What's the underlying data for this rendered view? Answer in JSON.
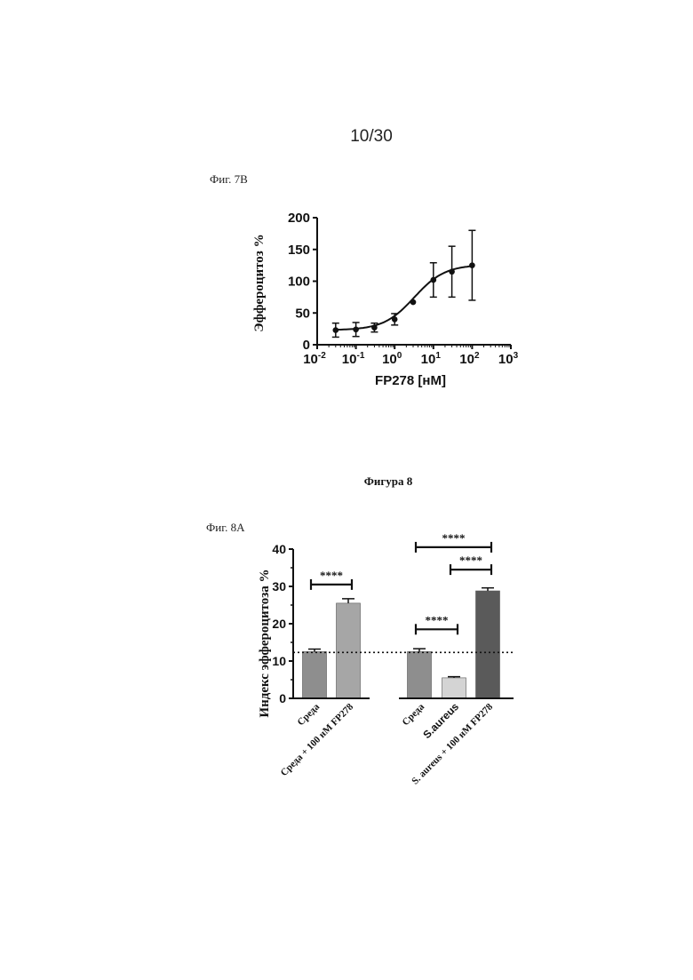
{
  "page": {
    "number": "10/30"
  },
  "fig7b": {
    "label": "Фиг. 7В"
  },
  "figure8": {
    "title": "Фигура 8"
  },
  "fig8a": {
    "label": "Фиг. 8А"
  },
  "colors": {
    "ink": "#111111",
    "bar_medium": "#8e8e8e",
    "bar_fp278": "#a6a6a6",
    "bar_saureus": "#d4d4d4",
    "bar_saureus_fp278": "#5a5a5a"
  },
  "chart_data": [
    {
      "type": "scatter",
      "title": "",
      "xlabel": "FP278 [нМ]",
      "ylabel": "Эффероцитоз %",
      "xscale": "log",
      "xlim": [
        0.01,
        1000
      ],
      "ylim": [
        0,
        200
      ],
      "xticks": [
        {
          "value": 0.01,
          "base": "10",
          "exp": "-2"
        },
        {
          "value": 0.1,
          "base": "10",
          "exp": "-1"
        },
        {
          "value": 1,
          "base": "10",
          "exp": "0"
        },
        {
          "value": 10,
          "base": "10",
          "exp": "1"
        },
        {
          "value": 100,
          "base": "10",
          "exp": "2"
        },
        {
          "value": 1000,
          "base": "10",
          "exp": "3"
        }
      ],
      "yticks": [
        0,
        50,
        100,
        150,
        200
      ],
      "grid": false,
      "points": [
        {
          "x": 0.03,
          "y": 23,
          "err": 11
        },
        {
          "x": 0.1,
          "y": 24,
          "err": 11
        },
        {
          "x": 0.3,
          "y": 27,
          "err": 7
        },
        {
          "x": 1,
          "y": 40,
          "err": 9
        },
        {
          "x": 3,
          "y": 67,
          "err": 0
        },
        {
          "x": 10,
          "y": 102,
          "err": 27
        },
        {
          "x": 30,
          "y": 115,
          "err": 40
        },
        {
          "x": 100,
          "y": 125,
          "err": 55
        }
      ],
      "fit": {
        "bottom": 23,
        "top": 126,
        "ec50": 3.2,
        "hill": 1.1
      }
    },
    {
      "type": "bar",
      "title": "",
      "xlabel": "",
      "ylabel": "Индекс эффероцитоза %",
      "ylim": [
        0,
        40
      ],
      "yticks": [
        0,
        10,
        20,
        30,
        40
      ],
      "grid": false,
      "reference_line": 12.3,
      "categories": [
        "Среда",
        "Среда + 100 нМ FP278",
        "Среда",
        "S.aureus",
        "S. aureus + 100 нМ FP278"
      ],
      "category_fonts": [
        "serif",
        "serif",
        "serif",
        "sans",
        "serif"
      ],
      "values": [
        12.5,
        25.5,
        12.5,
        5.5,
        28.8
      ],
      "errors": [
        0.7,
        1.2,
        0.8,
        0.3,
        0.8
      ],
      "significance": [
        {
          "from": 0,
          "to": 1,
          "label": "****",
          "y": 30.5
        },
        {
          "from": 2,
          "to": 3,
          "label": "****",
          "y": 18.5
        },
        {
          "from": 3,
          "to": 4,
          "label": "****",
          "y": 34.5
        },
        {
          "from": 2,
          "to": 4,
          "label": "****",
          "y": 40.5
        }
      ]
    }
  ]
}
